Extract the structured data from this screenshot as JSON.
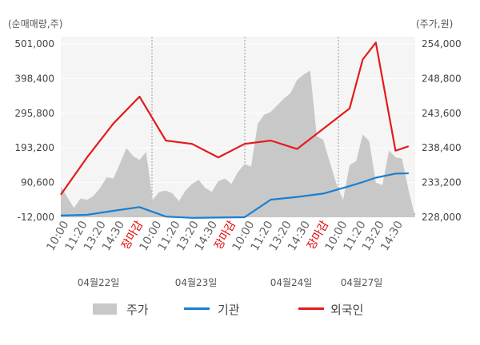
{
  "chart_data": {
    "type": "line",
    "left_axis_unit": "(순매매량,주)",
    "right_axis_unit": "(주가,원)",
    "left_ticks": [
      "501,000",
      "398,400",
      "295,800",
      "193,200",
      "90,600",
      "-12,000"
    ],
    "right_ticks": [
      "254,000",
      "248,800",
      "243,600",
      "238,400",
      "233,200",
      "228,000"
    ],
    "ylim_left": [
      -12000,
      501000
    ],
    "ylim_right": [
      228000,
      254000
    ],
    "x_tick_labels": [
      "10:00",
      "11:20",
      "13:20",
      "14:30",
      "장마감",
      "10:00",
      "11:20",
      "13:20",
      "14:30",
      "장마감",
      "10:00",
      "11:20",
      "13:20",
      "14:30",
      "장마감",
      "10:00",
      "11:20",
      "13:20",
      "14:30"
    ],
    "x_tick_close_flags": [
      false,
      false,
      false,
      false,
      true,
      false,
      false,
      false,
      false,
      true,
      false,
      false,
      false,
      false,
      true,
      false,
      false,
      false,
      false
    ],
    "date_labels": [
      "04월22일",
      "04월23일",
      "04월24일",
      "04월27일"
    ],
    "legend": {
      "price": "주가",
      "institution": "기관",
      "foreign": "외국인"
    },
    "colors": {
      "price": "#c8c8c8",
      "institution": "#1a7fd1",
      "foreign": "#e31b1b",
      "background": "#f5f5f5"
    },
    "series": [
      {
        "name": "외국인",
        "x": [
          0,
          2,
          4,
          6,
          8,
          10,
          12,
          14,
          16,
          18,
          20,
          22,
          23,
          24,
          25.5
        ],
        "values": [
          55000,
          165000,
          265000,
          345000,
          215000,
          205000,
          165000,
          205000,
          215000,
          190000,
          250000,
          310000,
          455000,
          505000,
          185000
        ]
      },
      {
        "name": "기관",
        "x": [
          0,
          2,
          4,
          6,
          8,
          10,
          12,
          14,
          16,
          18,
          20,
          22,
          23,
          24,
          25.5
        ],
        "values": [
          -7000,
          -5000,
          7000,
          18000,
          -10000,
          -14000,
          -13000,
          -12000,
          40000,
          48000,
          58000,
          80000,
          92000,
          105000,
          117000
        ]
      }
    ],
    "right_extra_foreign": [
      25.5,
      185000,
      26.5,
      198000
    ],
    "right_extra_institution": [
      25.5,
      117000,
      26.5,
      118000
    ],
    "price_area": {
      "x": [
        0,
        0.5,
        1.0,
        1.5,
        2.0,
        2.5,
        3.0,
        3.5,
        4.0,
        4.5,
        5.0,
        5.5,
        6.0,
        6.5,
        7.0,
        7.5,
        8.0,
        8.5,
        9.0,
        9.5,
        10.0,
        10.5,
        11.0,
        11.5,
        12.0,
        12.5,
        13.0,
        13.5,
        14.0,
        14.5,
        15.0,
        15.5,
        16.0,
        16.5,
        17.0,
        17.5,
        18.0,
        18.5,
        19.0,
        19.5,
        20.0,
        20.5,
        21.0,
        21.5,
        22.0,
        22.5,
        23.0,
        23.5,
        24.0,
        24.5,
        25.0,
        25.5,
        26.0,
        26.5,
        27.0
      ],
      "values": [
        232600,
        231000,
        229400,
        230800,
        230600,
        231200,
        232400,
        234000,
        233800,
        236000,
        238400,
        237200,
        236600,
        237800,
        230600,
        231800,
        232000,
        231600,
        230400,
        232000,
        233000,
        233600,
        232400,
        231800,
        233400,
        233800,
        233000,
        234800,
        236000,
        235600,
        242000,
        243400,
        243800,
        244800,
        245800,
        246600,
        248600,
        249400,
        250000,
        240200,
        239600,
        236200,
        233000,
        230600,
        235800,
        236400,
        240400,
        239400,
        233200,
        232800,
        238000,
        237000,
        236800,
        232000,
        228000
      ]
    }
  }
}
